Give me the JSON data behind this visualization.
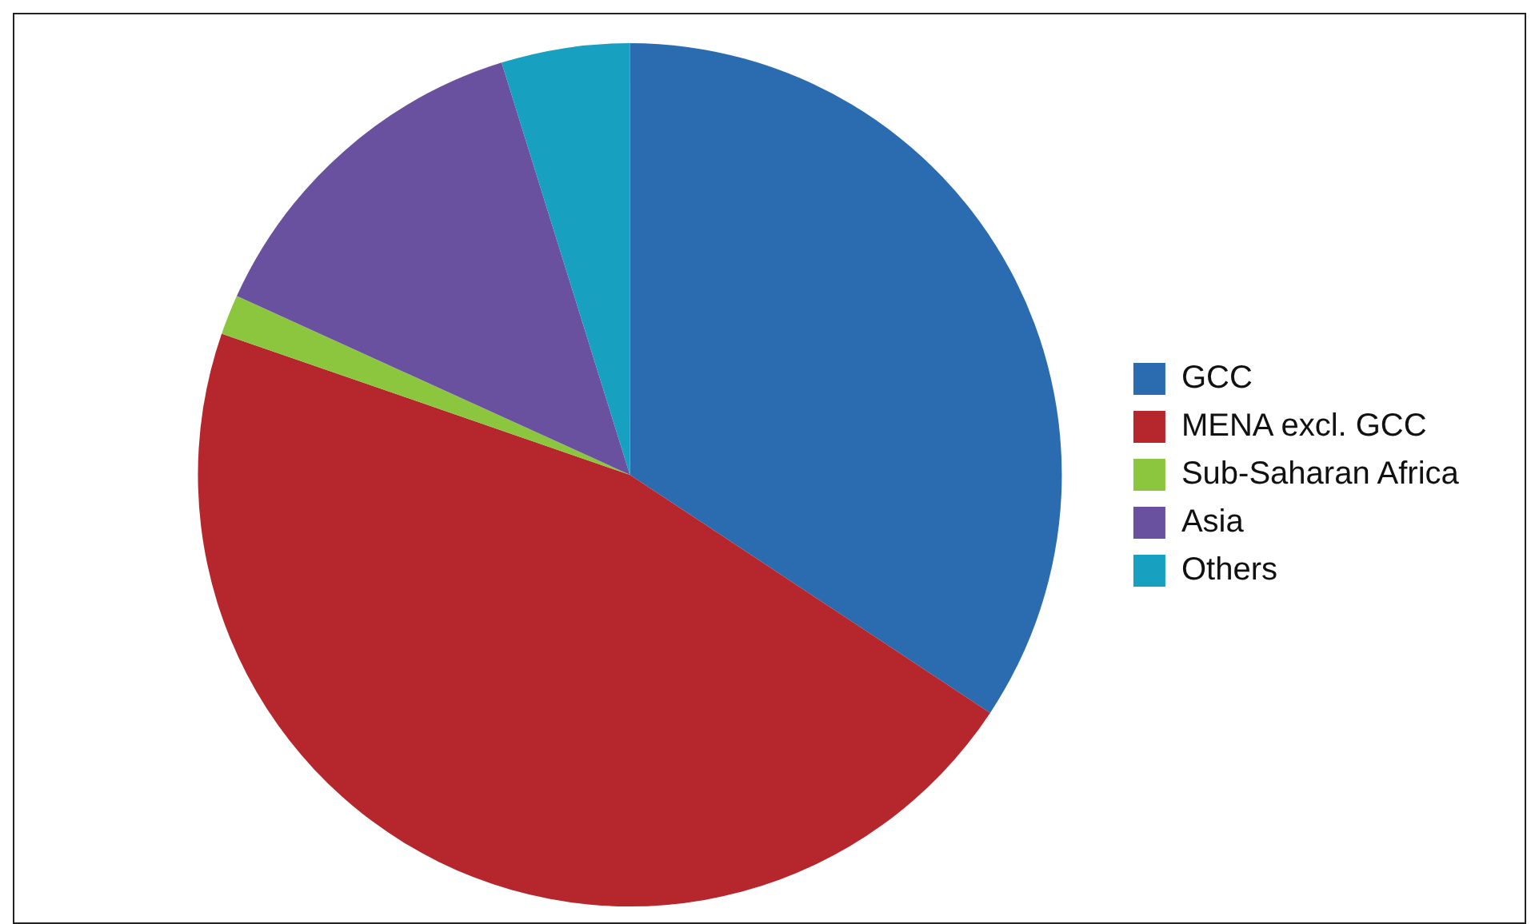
{
  "chart_data": {
    "type": "pie",
    "categories": [
      "GCC",
      "MENA excl. GCC",
      "Sub-Saharan Africa",
      "Asia",
      "Others"
    ],
    "values": [
      34.3,
      46.0,
      1.5,
      13.4,
      4.8
    ],
    "colors": [
      "#2b6cb0",
      "#b5262d",
      "#8cc63f",
      "#6a51a0",
      "#17a0c0"
    ],
    "legend": "right"
  }
}
